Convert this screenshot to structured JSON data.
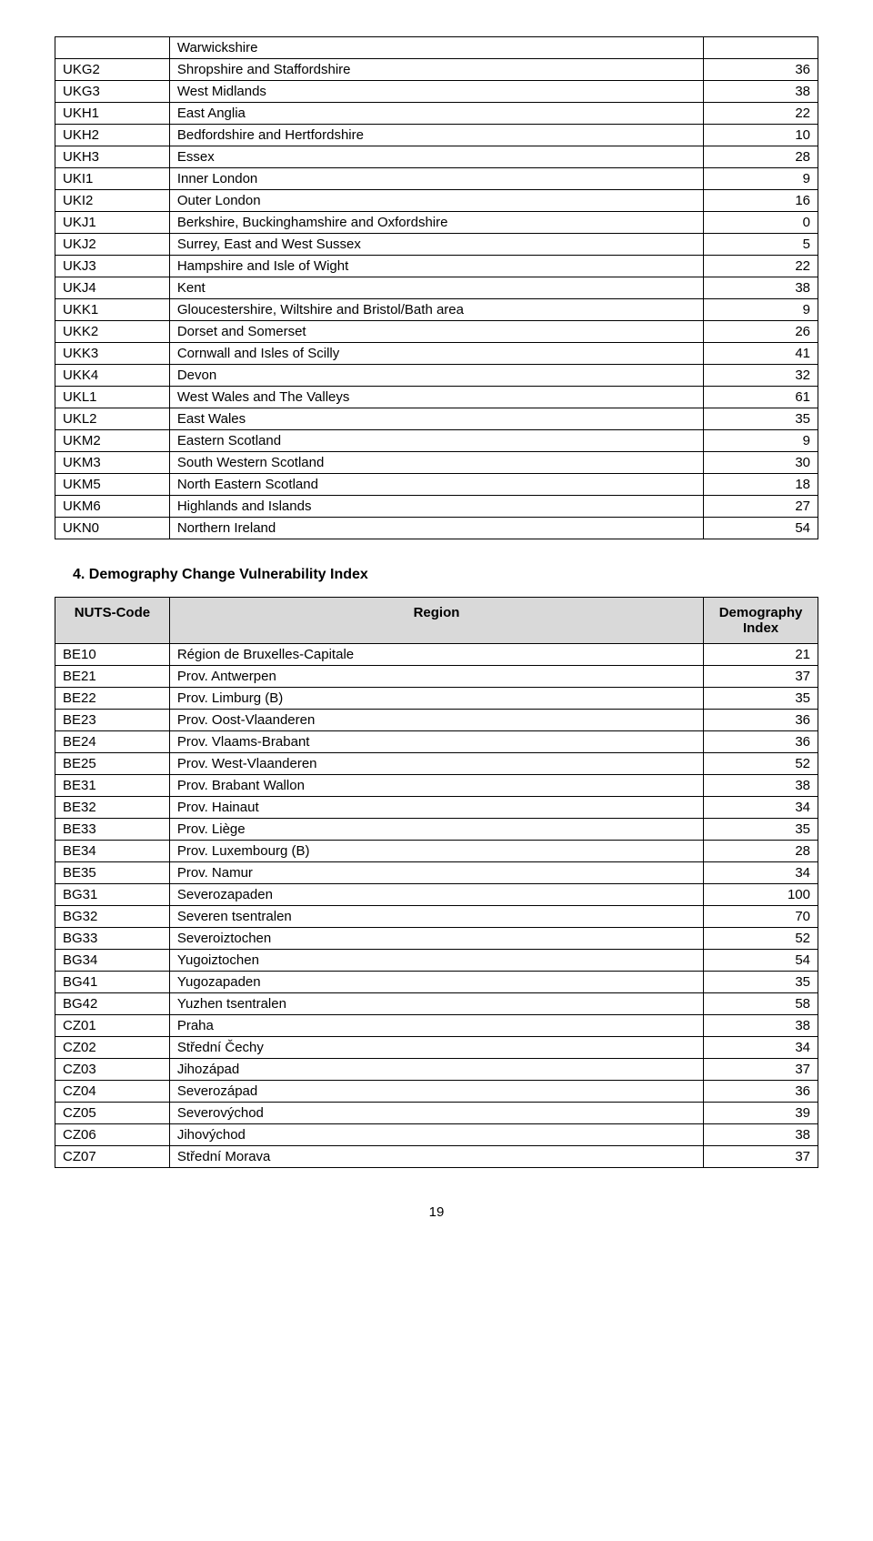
{
  "table1": {
    "rows": [
      [
        "",
        "Warwickshire",
        ""
      ],
      [
        "UKG2",
        "Shropshire and Staffordshire",
        "36"
      ],
      [
        "UKG3",
        "West Midlands",
        "38"
      ],
      [
        "UKH1",
        "East Anglia",
        "22"
      ],
      [
        "UKH2",
        "Bedfordshire and Hertfordshire",
        "10"
      ],
      [
        "UKH3",
        "Essex",
        "28"
      ],
      [
        "UKI1",
        "Inner London",
        "9"
      ],
      [
        "UKI2",
        "Outer London",
        "16"
      ],
      [
        "UKJ1",
        "Berkshire, Buckinghamshire and Oxfordshire",
        "0"
      ],
      [
        "UKJ2",
        "Surrey, East and West Sussex",
        "5"
      ],
      [
        "UKJ3",
        "Hampshire and Isle of Wight",
        "22"
      ],
      [
        "UKJ4",
        "Kent",
        "38"
      ],
      [
        "UKK1",
        "Gloucestershire, Wiltshire and Bristol/Bath area",
        "9"
      ],
      [
        "UKK2",
        "Dorset and Somerset",
        "26"
      ],
      [
        "UKK3",
        "Cornwall and Isles of Scilly",
        "41"
      ],
      [
        "UKK4",
        "Devon",
        "32"
      ],
      [
        "UKL1",
        "West Wales and The Valleys",
        "61"
      ],
      [
        "UKL2",
        "East Wales",
        "35"
      ],
      [
        "UKM2",
        "Eastern Scotland",
        "9"
      ],
      [
        "UKM3",
        "South Western Scotland",
        "30"
      ],
      [
        "UKM5",
        "North Eastern Scotland",
        "18"
      ],
      [
        "UKM6",
        "Highlands and Islands",
        "27"
      ],
      [
        "UKN0",
        "Northern Ireland",
        "54"
      ]
    ]
  },
  "section_title": "4. Demography Change Vulnerability Index",
  "table2": {
    "headers": [
      "NUTS-Code",
      "Region",
      "Demography Index"
    ],
    "rows": [
      [
        "BE10",
        "Région de Bruxelles-Capitale",
        "21"
      ],
      [
        "BE21",
        "Prov. Antwerpen",
        "37"
      ],
      [
        "BE22",
        "Prov. Limburg (B)",
        "35"
      ],
      [
        "BE23",
        "Prov. Oost-Vlaanderen",
        "36"
      ],
      [
        "BE24",
        "Prov. Vlaams-Brabant",
        "36"
      ],
      [
        "BE25",
        "Prov. West-Vlaanderen",
        "52"
      ],
      [
        "BE31",
        "Prov. Brabant Wallon",
        "38"
      ],
      [
        "BE32",
        "Prov. Hainaut",
        "34"
      ],
      [
        "BE33",
        "Prov. Liège",
        "35"
      ],
      [
        "BE34",
        "Prov. Luxembourg (B)",
        "28"
      ],
      [
        "BE35",
        "Prov. Namur",
        "34"
      ],
      [
        "BG31",
        "Severozapaden",
        "100"
      ],
      [
        "BG32",
        "Severen tsentralen",
        "70"
      ],
      [
        "BG33",
        "Severoiztochen",
        "52"
      ],
      [
        "BG34",
        "Yugoiztochen",
        "54"
      ],
      [
        "BG41",
        "Yugozapaden",
        "35"
      ],
      [
        "BG42",
        "Yuzhen tsentralen",
        "58"
      ],
      [
        "CZ01",
        "Praha",
        "38"
      ],
      [
        "CZ02",
        "Střední Čechy",
        "34"
      ],
      [
        "CZ03",
        "Jihozápad",
        "37"
      ],
      [
        "CZ04",
        "Severozápad",
        "36"
      ],
      [
        "CZ05",
        "Severovýchod",
        "39"
      ],
      [
        "CZ06",
        "Jihovýchod",
        "38"
      ],
      [
        "CZ07",
        "Střední Morava",
        "37"
      ]
    ]
  },
  "page_number": "19"
}
